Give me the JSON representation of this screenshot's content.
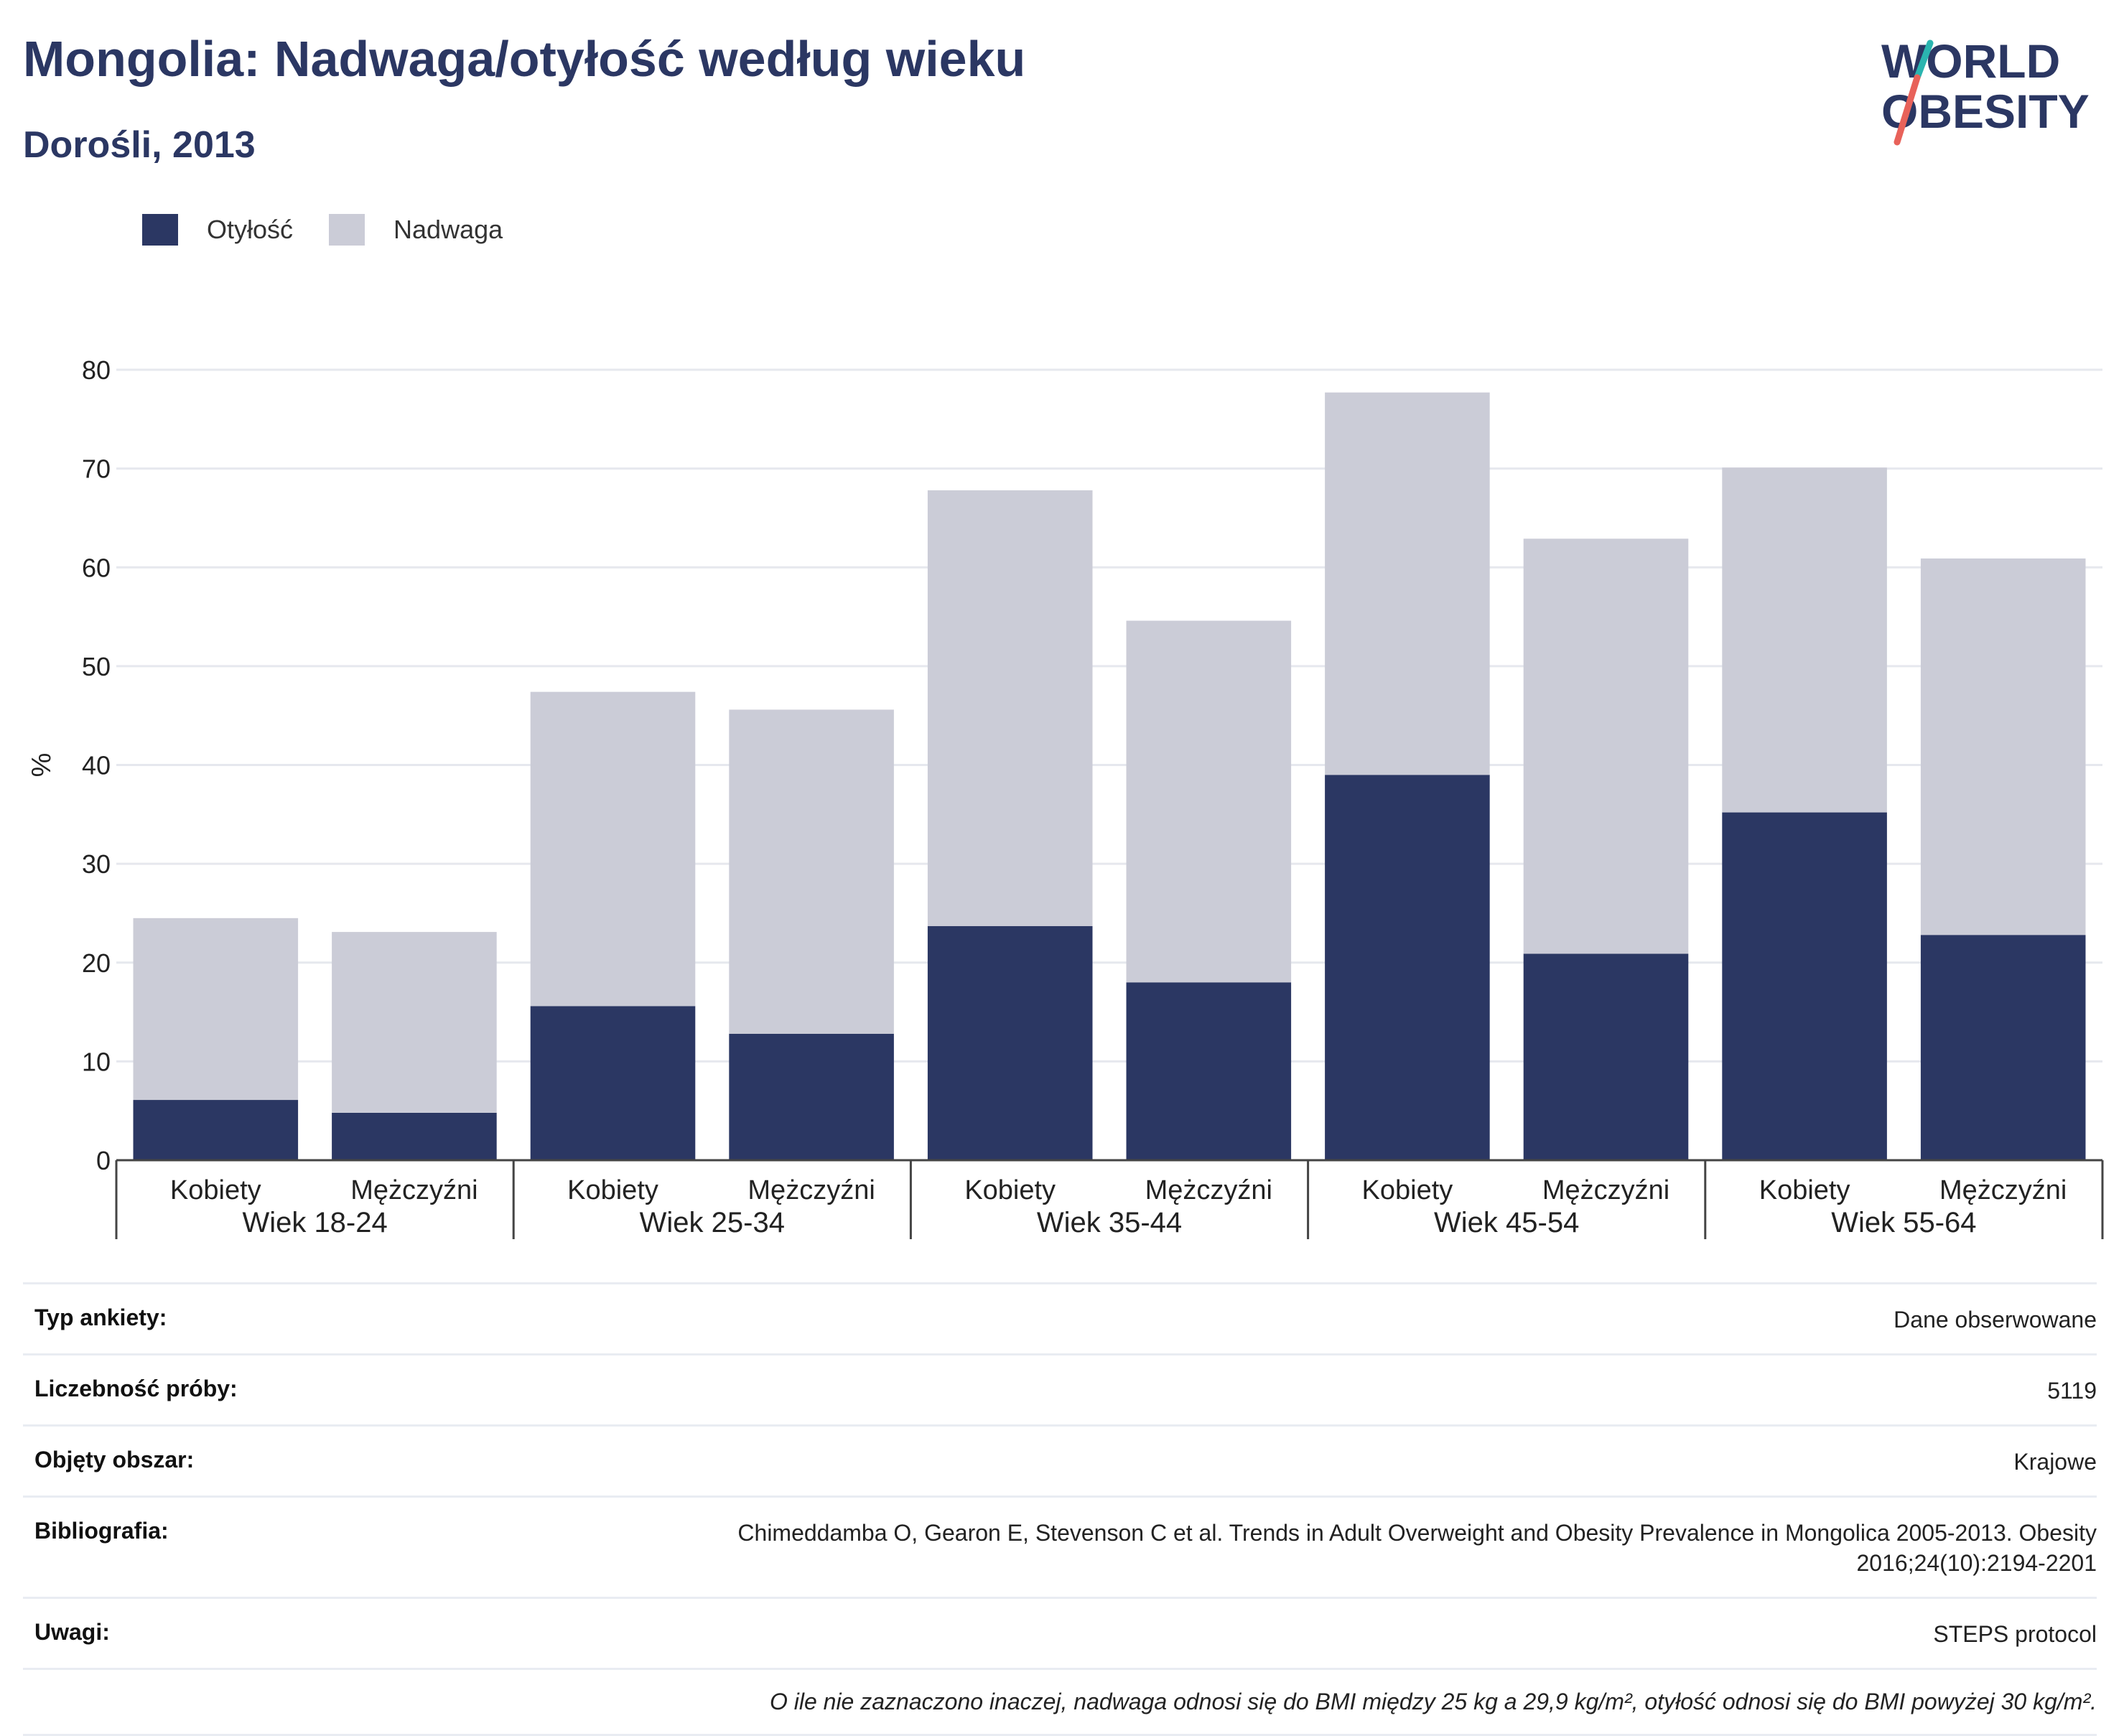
{
  "header": {
    "title": "Mongolia: Nadwaga/otyłość według wieku",
    "subtitle": "Dorośli, 2013"
  },
  "logo": {
    "line1": "WORLD",
    "line2": "OBESITY",
    "accent_colors": [
      "#2bb5b0",
      "#e8625a"
    ]
  },
  "legend": [
    {
      "label": "Otyłość",
      "color": "#2b3763"
    },
    {
      "label": "Nadwaga",
      "color": "#cbccd7"
    }
  ],
  "chart_data": {
    "type": "bar",
    "stacked": true,
    "ylabel": "%",
    "ylim": [
      0,
      80
    ],
    "yticks": [
      0,
      10,
      20,
      30,
      40,
      50,
      60,
      70,
      80
    ],
    "grid": true,
    "legend_position": "top-left",
    "groups": [
      "Wiek 18-24",
      "Wiek 25-34",
      "Wiek 35-44",
      "Wiek 45-54",
      "Wiek 55-64"
    ],
    "categories": [
      "Kobiety",
      "Mężczyźni",
      "Kobiety",
      "Mężczyźni",
      "Kobiety",
      "Mężczyźni",
      "Kobiety",
      "Mężczyźni",
      "Kobiety",
      "Mężczyźni"
    ],
    "series": [
      {
        "name": "Otyłość",
        "color": "#2b3763",
        "values": [
          6.1,
          4.8,
          15.6,
          12.8,
          23.7,
          18.0,
          39.0,
          20.9,
          35.2,
          22.8
        ]
      },
      {
        "name": "Nadwaga",
        "color": "#cbccd7",
        "values": [
          18.4,
          18.3,
          31.8,
          32.8,
          44.1,
          36.6,
          38.7,
          42.0,
          34.9,
          38.1
        ]
      }
    ]
  },
  "info": [
    {
      "key": "Typ ankiety:",
      "value": "Dane obserwowane"
    },
    {
      "key": "Liczebność próby:",
      "value": "5119"
    },
    {
      "key": "Objęty obszar:",
      "value": "Krajowe"
    },
    {
      "key": "Bibliografia:",
      "value": "Chimeddamba O, Gearon E, Stevenson C et al. Trends in Adult Overweight and Obesity Prevalence in Mongolica 2005-2013. Obesity 2016;24(10):2194-2201"
    },
    {
      "key": "Uwagi:",
      "value": "STEPS protocol"
    }
  ],
  "note": "O ile nie zaznaczono inaczej, nadwaga odnosi się do BMI między 25 kg a 29,9 kg/m², otyłość odnosi się do BMI powyżej 30 kg/m²."
}
